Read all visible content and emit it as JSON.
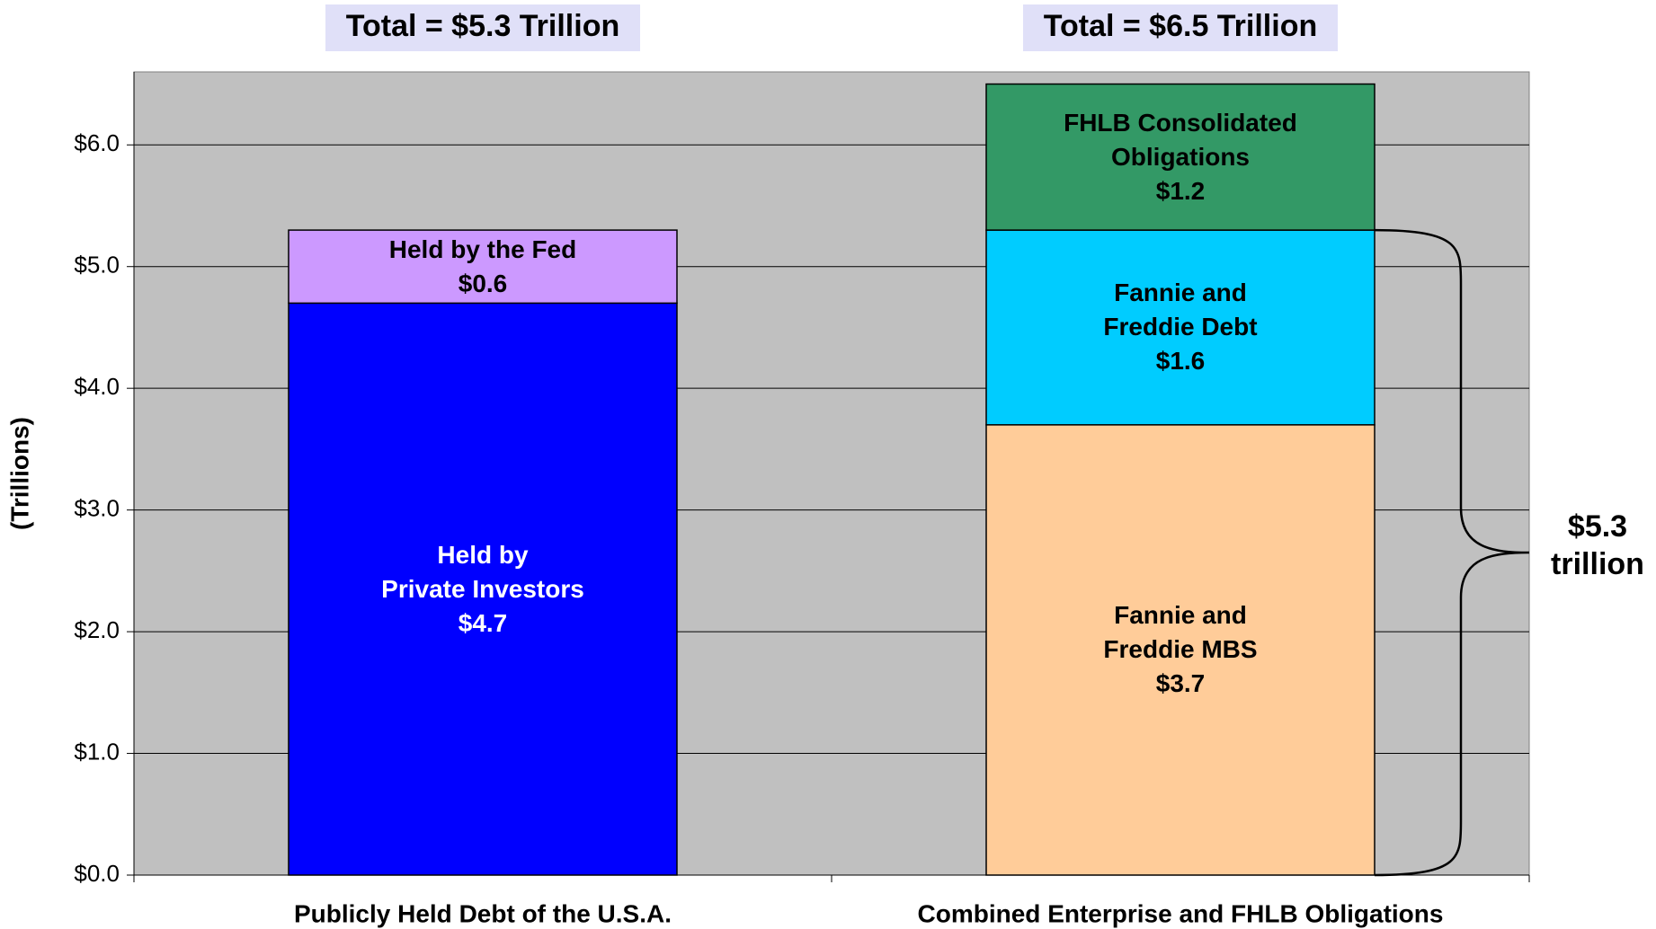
{
  "chart_data": {
    "type": "stacked_bar",
    "categories": [
      "Publicly Held Debt of the U.S.A.",
      "Combined Enterprise and FHLB Obligations"
    ],
    "series": [
      {
        "name": "Held by Private Investors",
        "color": "#0000ff",
        "values": [
          4.7,
          null
        ],
        "value_labels": [
          "$4.7",
          null
        ]
      },
      {
        "name": "Held by the Fed",
        "color": "#cc99ff",
        "values": [
          0.6,
          null
        ],
        "value_labels": [
          "$0.6",
          null
        ]
      },
      {
        "name": "Fannie and Freddie MBS",
        "color": "#ffcc99",
        "values": [
          null,
          3.7
        ],
        "value_labels": [
          null,
          "$3.7"
        ]
      },
      {
        "name": "Fannie and Freddie Debt",
        "color": "#00ccff",
        "values": [
          null,
          1.6
        ],
        "value_labels": [
          null,
          "$1.6"
        ]
      },
      {
        "name": "FHLB Consolidated Obligations",
        "color": "#339966",
        "values": [
          null,
          1.2
        ],
        "value_labels": [
          null,
          "$1.2"
        ]
      }
    ],
    "totals": [
      "Total = $5.3 Trillion",
      "Total = $6.5 Trillion"
    ],
    "brace_annotation": "$5.3 trillion",
    "ylabel": "(Trillions)",
    "ylim": [
      0,
      6.6
    ],
    "yticks": [
      {
        "value": 0,
        "label": "$0.0"
      },
      {
        "value": 1,
        "label": "$1.0"
      },
      {
        "value": 2,
        "label": "$2.0"
      },
      {
        "value": 3,
        "label": "$3.0"
      },
      {
        "value": 4,
        "label": "$4.0"
      },
      {
        "value": 5,
        "label": "$5.0"
      },
      {
        "value": 6,
        "label": "$6.0"
      }
    ],
    "grid": true
  }
}
